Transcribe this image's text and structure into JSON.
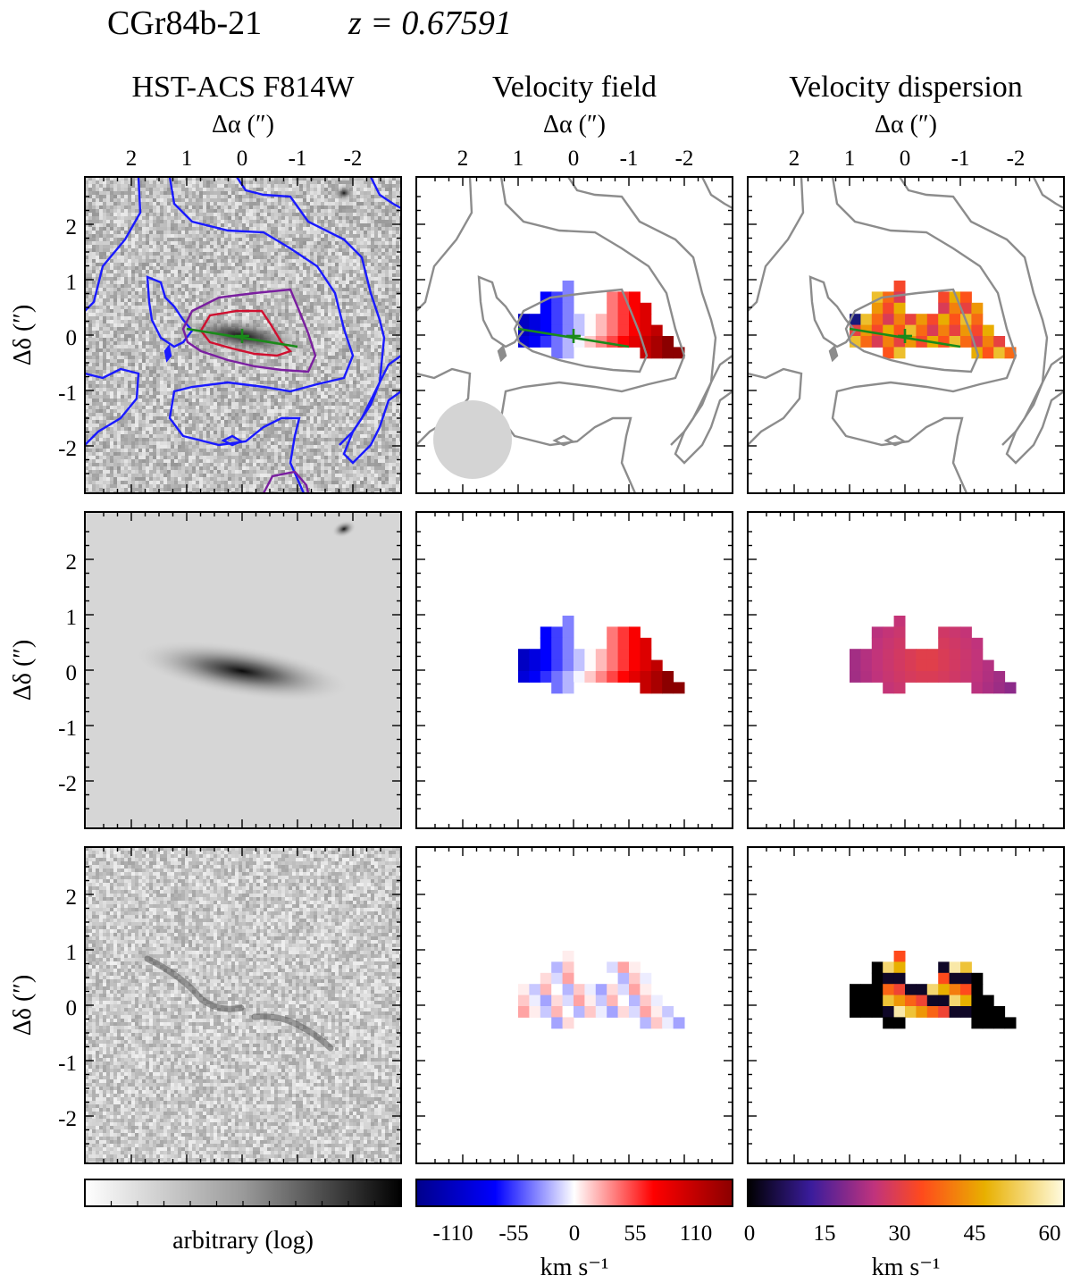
{
  "figure": {
    "object_name": "CGr84b-21",
    "redshift_label": "z = 0.67591"
  },
  "columns": [
    {
      "title": "HST-ACS F814W",
      "top_axis_label": "Δα (″)"
    },
    {
      "title": "Velocity field",
      "top_axis_label": "Δα (″)"
    },
    {
      "title": "Velocity dispersion",
      "top_axis_label": "Δα (″)"
    }
  ],
  "axes": {
    "ra_ticks": [
      "2",
      "1",
      "0",
      "-1",
      "-2"
    ],
    "dec_ticks": [
      "2",
      "1",
      "0",
      "-1",
      "-2"
    ],
    "y_label": "Δδ (″)"
  },
  "colorbars": [
    {
      "name": "flux",
      "label": "arbitrary (log)",
      "ticks": [],
      "cmap": [
        "#ffffff",
        "#000000"
      ]
    },
    {
      "name": "velocity",
      "label": "km s⁻¹",
      "ticks": [
        "-110",
        "-55",
        "0",
        "55",
        "110"
      ],
      "cmap": [
        "#00008b",
        "#0000ff",
        "#ffffff",
        "#ff0000",
        "#8b0000"
      ]
    },
    {
      "name": "dispersion",
      "label": "km s⁻¹",
      "ticks": [
        "0",
        "15",
        "30",
        "45",
        "60"
      ],
      "cmap": [
        "#000000",
        "#3a1c9c",
        "#c0337d",
        "#ff4a1c",
        "#e8b000",
        "#fffbe0"
      ]
    }
  ],
  "colors": {
    "contour_outer": "#1a1aff",
    "contour_mid": "#7a1fa0",
    "contour_inner": "#d01030",
    "contour_gray": "#8c8c8c",
    "major_axis": "#1a8a1a",
    "psf": "#d4d4d4"
  }
}
